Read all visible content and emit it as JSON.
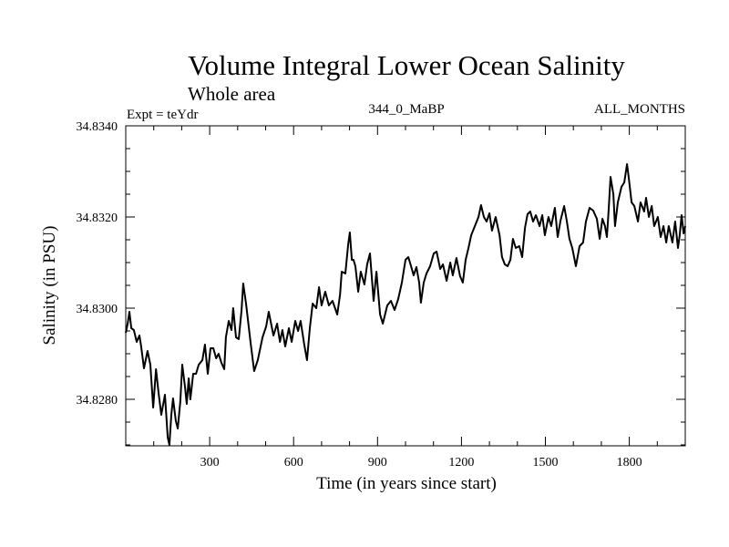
{
  "chart_data": {
    "type": "line",
    "title": "Volume Integral Lower Ocean Salinity",
    "subtitle": "Whole area",
    "annotations": {
      "left": "Expt = teYdr",
      "center": "344_0_MaBP",
      "right": "ALL_MONTHS"
    },
    "xlabel": "Time (in years since start)",
    "ylabel": "Salinity (in PSU)",
    "xlim": [
      0,
      2000
    ],
    "ylim": [
      34.82698,
      34.834
    ],
    "xticks": [
      300,
      600,
      900,
      1200,
      1500,
      1800
    ],
    "xtick_labels": [
      "300",
      "600",
      "900",
      "1200",
      "1500",
      "1800"
    ],
    "x_minor_step": 100,
    "yticks": [
      34.834,
      34.832,
      34.83,
      34.828
    ],
    "ytick_labels": [
      "34.8340",
      "34.8320",
      "34.8300",
      "34.8280"
    ],
    "y_minor_step": 0.0005,
    "grid": false,
    "legend": "none",
    "series": [
      {
        "name": "salinity",
        "color": "#000000",
        "x": [
          0,
          7,
          13,
          20,
          29,
          39,
          49,
          55,
          65,
          78,
          88,
          98,
          108,
          117,
          127,
          140,
          150,
          156,
          163,
          169,
          179,
          186,
          195,
          202,
          212,
          218,
          225,
          231,
          241,
          251,
          261,
          274,
          283,
          293,
          303,
          313,
          323,
          332,
          342,
          352,
          358,
          368,
          378,
          384,
          394,
          404,
          414,
          420,
          430,
          446,
          459,
          472,
          489,
          502,
          511,
          528,
          541,
          551,
          560,
          570,
          583,
          593,
          606,
          616,
          625,
          638,
          648,
          658,
          668,
          681,
          691,
          700,
          713,
          726,
          739,
          756,
          766,
          772,
          785,
          795,
          801,
          808,
          814,
          821,
          831,
          840,
          853,
          863,
          873,
          886,
          896,
          909,
          919,
          935,
          948,
          961,
          974,
          987,
          1000,
          1010,
          1020,
          1029,
          1039,
          1049,
          1055,
          1065,
          1075,
          1088,
          1101,
          1111,
          1124,
          1134,
          1147,
          1160,
          1169,
          1182,
          1195,
          1205,
          1215,
          1225,
          1235,
          1248,
          1261,
          1270,
          1280,
          1290,
          1300,
          1309,
          1322,
          1336,
          1345,
          1355,
          1365,
          1375,
          1384,
          1394,
          1407,
          1417,
          1427,
          1436,
          1446,
          1456,
          1466,
          1479,
          1489,
          1498,
          1511,
          1521,
          1534,
          1544,
          1554,
          1567,
          1577,
          1586,
          1596,
          1609,
          1622,
          1635,
          1645,
          1658,
          1671,
          1684,
          1694,
          1704,
          1713,
          1720,
          1726,
          1733,
          1743,
          1749,
          1759,
          1772,
          1782,
          1792,
          1798,
          1808,
          1818,
          1831,
          1840,
          1853,
          1860,
          1870,
          1880,
          1889,
          1902,
          1912,
          1922,
          1932,
          1941,
          1954,
          1964,
          1974,
          1980,
          1987,
          1994,
          2000
        ],
        "y": [
          34.82946,
          34.82966,
          34.82992,
          34.82956,
          34.82952,
          34.82926,
          34.8294,
          34.82916,
          34.82868,
          34.82906,
          34.82876,
          34.82782,
          34.82866,
          34.82816,
          34.82766,
          34.8281,
          34.82716,
          34.827,
          34.82766,
          34.82802,
          34.82752,
          34.82736,
          34.82796,
          34.82876,
          34.82826,
          34.8279,
          34.82846,
          34.828,
          34.82856,
          34.82856,
          34.82876,
          34.82886,
          34.8292,
          34.82856,
          34.82912,
          34.82912,
          34.8289,
          34.829,
          34.8288,
          34.82866,
          34.82936,
          34.82972,
          34.82952,
          34.83,
          34.82936,
          34.82932,
          34.82996,
          34.83054,
          34.8301,
          34.82926,
          34.82862,
          34.82886,
          34.82936,
          34.8296,
          34.82992,
          34.8294,
          34.82966,
          34.82926,
          34.82952,
          34.82916,
          34.82956,
          34.82926,
          34.82972,
          34.8295,
          34.82972,
          34.8292,
          34.82886,
          34.82956,
          34.8301,
          34.83,
          34.83046,
          34.83006,
          34.83036,
          34.83006,
          34.83016,
          34.82986,
          34.8303,
          34.8308,
          34.83076,
          34.8314,
          34.83166,
          34.83106,
          34.83106,
          34.83092,
          34.83036,
          34.8308,
          34.83052,
          34.83096,
          34.8312,
          34.83016,
          34.8308,
          34.82986,
          34.82966,
          34.83006,
          34.83016,
          34.82996,
          34.8302,
          34.83056,
          34.83106,
          34.83112,
          34.83092,
          34.83072,
          34.8309,
          34.83056,
          34.83012,
          34.83056,
          34.83076,
          34.83092,
          34.8312,
          34.83124,
          34.83086,
          34.83096,
          34.8306,
          34.831,
          34.83072,
          34.8311,
          34.8307,
          34.83056,
          34.83106,
          34.83132,
          34.8316,
          34.8318,
          34.832,
          34.83226,
          34.832,
          34.8319,
          34.83208,
          34.8317,
          34.832,
          34.8316,
          34.83112,
          34.83096,
          34.83092,
          34.83106,
          34.83152,
          34.83132,
          34.83136,
          34.83112,
          34.83176,
          34.83206,
          34.83212,
          34.8319,
          34.83204,
          34.8318,
          34.83204,
          34.8316,
          34.832,
          34.8318,
          34.8322,
          34.83156,
          34.83192,
          34.83224,
          34.8319,
          34.83152,
          34.83132,
          34.83092,
          34.83136,
          34.83144,
          34.8319,
          34.8322,
          34.83214,
          34.83196,
          34.83152,
          34.83196,
          34.8318,
          34.83156,
          34.83214,
          34.83288,
          34.8325,
          34.8318,
          34.83232,
          34.83266,
          34.83276,
          34.83316,
          34.83286,
          34.83232,
          34.83224,
          34.8319,
          34.83232,
          34.83212,
          34.83242,
          34.832,
          34.83224,
          34.8318,
          34.832,
          34.83156,
          34.8318,
          34.83144,
          34.8318,
          34.83144,
          34.8319,
          34.83132,
          34.8316,
          34.83204,
          34.83164,
          34.8318
        ]
      }
    ]
  }
}
